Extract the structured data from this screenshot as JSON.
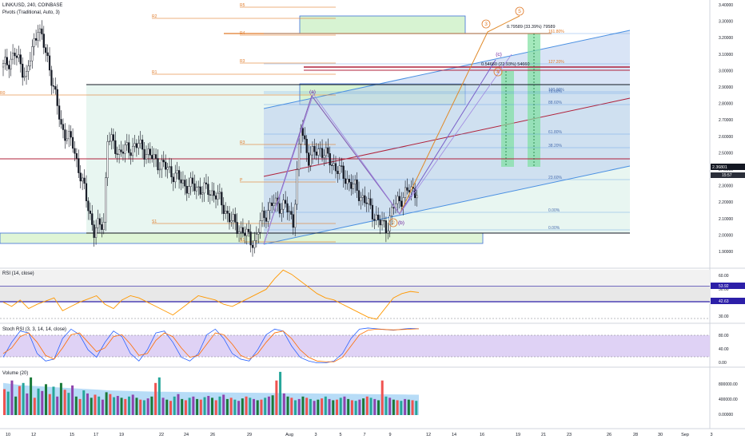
{
  "chart_data": {
    "type": "line",
    "symbol_line": "LINK/USD, 240, COINBASE",
    "indicator_line": "Pivots (Traditional, Auto, 3)",
    "colors": {
      "up": "#26a69a",
      "down": "#ef5350",
      "candle": "#131722",
      "fib_blue": "#4a90e2",
      "rsi": "#ff9800",
      "stoch_k": "#2962ff",
      "stoch_d": "#ff6d00"
    },
    "y_ticks": [
      "3.40000",
      "3.30000",
      "3.20000",
      "3.10000",
      "3.00000",
      "2.90000",
      "2.80000",
      "2.70000",
      "2.60000",
      "2.50000",
      "2.40000",
      "2.30000",
      "2.20000",
      "2.10000",
      "2.00000",
      "1.90000"
    ],
    "ylim": [
      1.94,
      3.42
    ],
    "x_ticks": [
      "10",
      "12",
      "15",
      "17",
      "19",
      "22",
      "24",
      "26",
      "29",
      "Aug",
      "3",
      "5",
      "7",
      "9",
      "12",
      "14",
      "16",
      "19",
      "21",
      "23",
      "26",
      "28",
      "30",
      "Sep",
      "3"
    ],
    "price_label": "2.36801",
    "price_label2": "15:57",
    "price_last": 2.368,
    "price_series": [
      {
        "bar": 0,
        "close": 3.05
      },
      {
        "bar": 6,
        "close": 3.12
      },
      {
        "bar": 12,
        "close": 3.0
      },
      {
        "bar": 18,
        "close": 3.28
      },
      {
        "bar": 24,
        "close": 3.05
      },
      {
        "bar": 30,
        "close": 2.72
      },
      {
        "bar": 36,
        "close": 2.62
      },
      {
        "bar": 44,
        "close": 2.28
      },
      {
        "bar": 47,
        "close": 2.14
      },
      {
        "bar": 52,
        "close": 2.2
      },
      {
        "bar": 54,
        "close": 2.66
      },
      {
        "bar": 60,
        "close": 2.58
      },
      {
        "bar": 70,
        "close": 2.62
      },
      {
        "bar": 78,
        "close": 2.54
      },
      {
        "bar": 86,
        "close": 2.48
      },
      {
        "bar": 94,
        "close": 2.4
      },
      {
        "bar": 102,
        "close": 2.38
      },
      {
        "bar": 110,
        "close": 2.35
      },
      {
        "bar": 118,
        "close": 2.2
      },
      {
        "bar": 126,
        "close": 2.12
      },
      {
        "bar": 130,
        "close": 2.08
      },
      {
        "bar": 134,
        "close": 2.22
      },
      {
        "bar": 140,
        "close": 2.3
      },
      {
        "bar": 146,
        "close": 2.28
      },
      {
        "bar": 150,
        "close": 2.2
      },
      {
        "bar": 154,
        "close": 2.72
      },
      {
        "bar": 158,
        "close": 2.55
      },
      {
        "bar": 164,
        "close": 2.6
      },
      {
        "bar": 170,
        "close": 2.52
      },
      {
        "bar": 176,
        "close": 2.45
      },
      {
        "bar": 182,
        "close": 2.38
      },
      {
        "bar": 188,
        "close": 2.3
      },
      {
        "bar": 194,
        "close": 2.2
      },
      {
        "bar": 198,
        "close": 2.16
      },
      {
        "bar": 202,
        "close": 2.28
      },
      {
        "bar": 206,
        "close": 2.33
      },
      {
        "bar": 210,
        "close": 2.37
      }
    ],
    "pivots": [
      {
        "name": "R5",
        "price": 3.36
      },
      {
        "name": "R4",
        "price": 3.18
      },
      {
        "name": "R3",
        "price": 3.0
      },
      {
        "name": "R2",
        "price": 3.26
      },
      {
        "name": "R1",
        "price": 2.92
      },
      {
        "name": "R0",
        "price": 2.78
      },
      {
        "name": "R3",
        "price": 2.49
      },
      {
        "name": "P",
        "price": 2.28
      },
      {
        "name": "S1",
        "price": 2.1
      },
      {
        "name": "S1",
        "price": 2.02
      }
    ],
    "fib_levels": [
      {
        "label": "161.80%",
        "price": 3.19
      },
      {
        "label": "127.20%",
        "price": 2.97
      },
      {
        "label": "100.00%",
        "price": 2.78
      },
      {
        "label": "88.60%",
        "price": 2.71
      },
      {
        "label": "61.80%",
        "price": 2.55
      },
      {
        "label": "38.20%",
        "price": 2.4
      },
      {
        "label": "23.60%",
        "price": 2.3
      },
      {
        "label": "0.00%",
        "price": 2.14
      },
      {
        "label": "0.00%",
        "price": 2.07
      },
      {
        "label": "78.60%",
        "price": 2.77
      }
    ],
    "wave_labels": [
      "(a)",
      "(b)",
      "(c)",
      "2",
      "3",
      "4",
      "5"
    ],
    "target_labels": [
      "0.79589 (33.39%) 79589",
      "0.54660 (22.93%) 54660"
    ],
    "rsi": {
      "title": "RSI (14, close)",
      "ticks": [
        "60.00",
        "50.00",
        "40.00",
        "30.00"
      ],
      "value_label": "53.92",
      "value_label2": "42.63",
      "values": [
        44,
        40,
        46,
        38,
        42,
        45,
        48,
        36,
        40,
        44,
        47,
        50,
        42,
        38,
        46,
        50,
        48,
        44,
        40,
        36,
        32,
        38,
        44,
        50,
        48,
        46,
        42,
        40,
        44,
        48,
        52,
        56,
        66,
        74,
        70,
        64,
        58,
        52,
        48,
        46,
        42,
        38,
        34,
        30,
        28,
        38,
        48,
        52,
        54,
        53
      ]
    },
    "stoch": {
      "title": "Stoch RSI (3, 3, 14, 14, close)",
      "ticks": [
        "80.00",
        "40.00",
        "0.00"
      ],
      "k": [
        20,
        60,
        90,
        85,
        30,
        10,
        15,
        70,
        95,
        80,
        40,
        20,
        60,
        90,
        75,
        30,
        10,
        40,
        85,
        90,
        60,
        20,
        10,
        30,
        80,
        95,
        70,
        30,
        15,
        10,
        40,
        80,
        95,
        90,
        50,
        20,
        10,
        5,
        5,
        10,
        30,
        70,
        95,
        98,
        96,
        94,
        92,
        95,
        97,
        96
      ],
      "d": [
        30,
        45,
        75,
        85,
        60,
        25,
        15,
        45,
        80,
        85,
        60,
        35,
        45,
        75,
        80,
        55,
        25,
        30,
        65,
        85,
        75,
        45,
        20,
        25,
        55,
        85,
        80,
        55,
        25,
        15,
        30,
        60,
        85,
        90,
        70,
        40,
        20,
        10,
        8,
        8,
        20,
        50,
        80,
        92,
        95,
        94,
        93,
        94,
        95,
        96
      ]
    },
    "volume": {
      "title": "Volume (20)",
      "ticks": [
        "800000.00",
        "400000.00",
        "0.00000"
      ],
      "values": [
        420,
        380,
        560,
        300,
        470,
        520,
        350,
        610,
        280,
        430,
        390,
        500,
        340,
        460,
        300,
        520,
        410,
        360,
        480,
        300,
        260,
        400,
        350,
        280,
        330,
        300,
        250,
        370,
        340,
        290,
        310,
        280,
        260,
        300,
        330,
        280,
        250,
        240,
        270,
        300,
        520,
        610,
        280,
        250,
        230,
        300,
        340,
        260,
        240,
        280,
        300,
        260,
        250,
        290,
        310,
        280,
        240,
        300,
        330,
        260,
        280,
        250,
        230,
        270,
        300,
        280,
        260,
        240,
        250,
        280,
        300,
        320,
        560,
        700,
        350,
        300,
        280,
        240,
        260,
        300,
        280,
        260,
        230,
        250,
        270,
        300,
        260,
        240,
        250,
        280,
        300,
        260,
        240,
        230,
        250,
        270,
        300,
        280,
        260,
        240,
        560,
        300,
        280,
        250,
        240,
        230,
        260,
        250,
        240,
        230
      ],
      "ma": [
        520,
        500,
        480,
        470,
        460,
        450,
        440,
        430,
        420,
        410,
        400,
        395,
        390,
        385,
        380,
        378,
        376,
        374,
        372,
        370,
        368,
        366,
        364,
        362,
        360,
        358,
        356,
        354,
        352,
        350,
        348,
        346,
        344,
        342,
        340,
        338,
        336,
        334,
        332,
        330
      ]
    }
  }
}
